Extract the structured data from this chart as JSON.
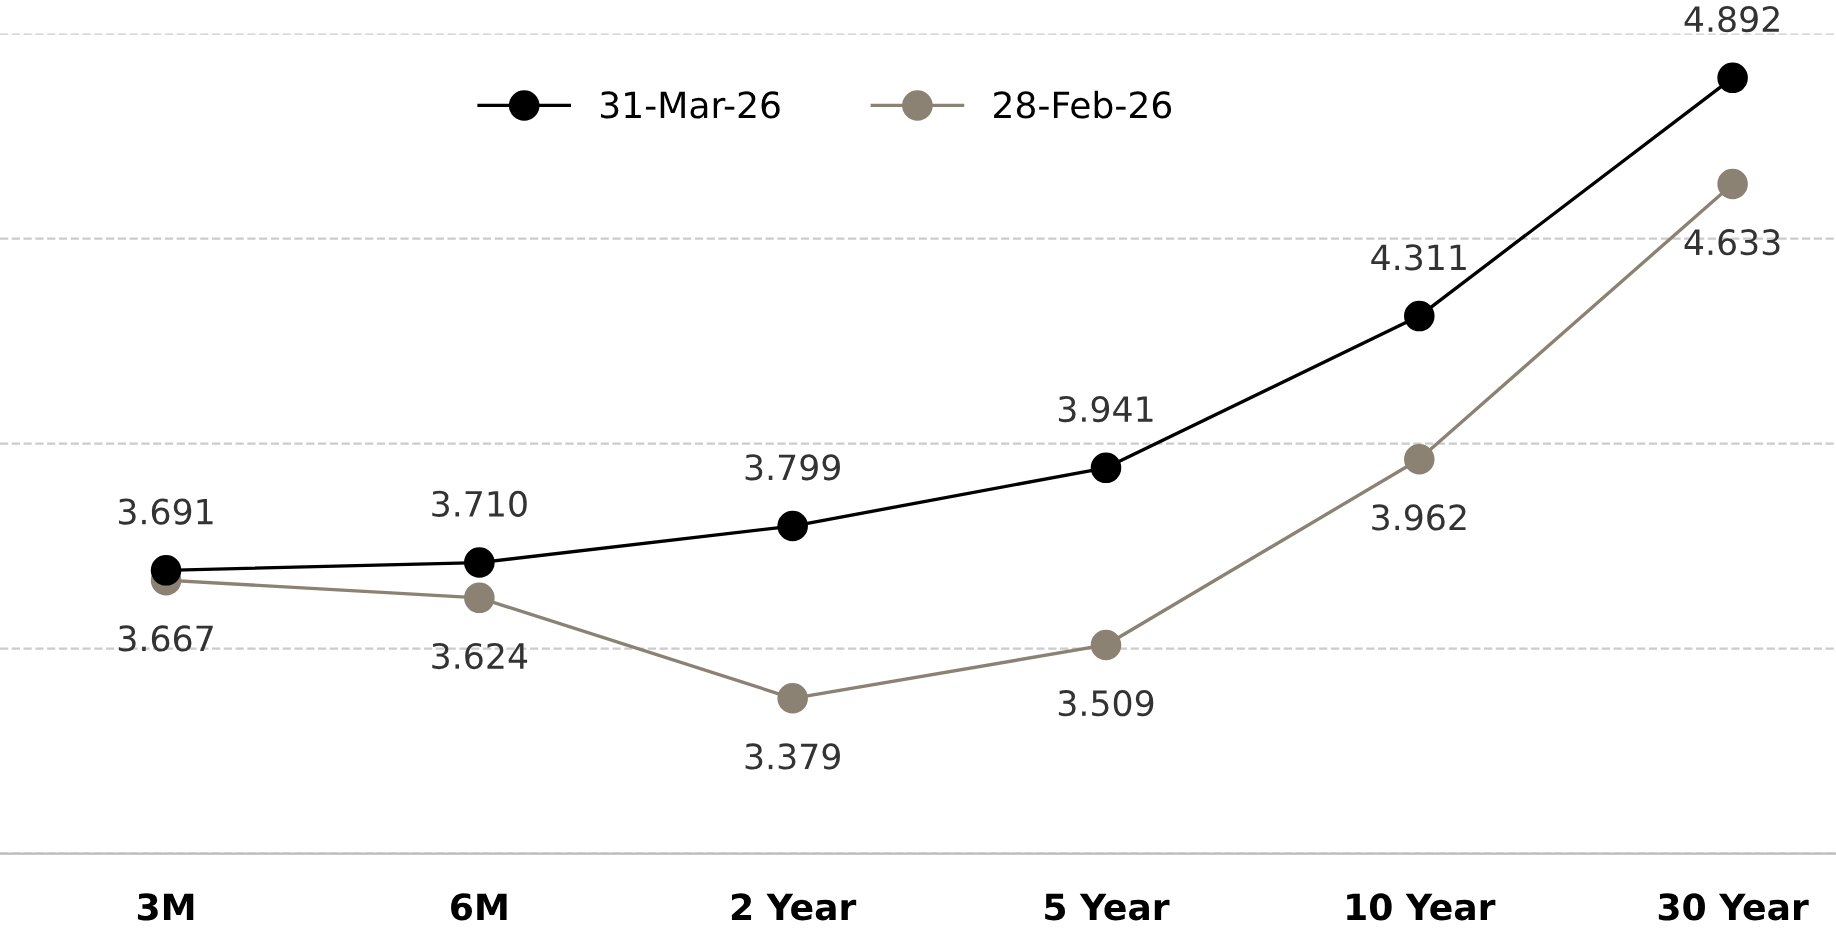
{
  "chart_data": {
    "type": "line",
    "categories": [
      "3M",
      "6M",
      "2 Year",
      "5 Year",
      "10 Year",
      "30 Year"
    ],
    "series": [
      {
        "name": "31-Mar-26",
        "color": "#000000",
        "values": [
          3.691,
          3.71,
          3.799,
          3.941,
          4.311,
          4.892
        ],
        "value_labels": [
          "3.691",
          "3.710",
          "3.799",
          "3.941",
          "4.311",
          "4.892"
        ]
      },
      {
        "name": "28-Feb-26",
        "color": "#8c8273",
        "values": [
          3.667,
          3.624,
          3.379,
          3.509,
          3.962,
          4.633
        ],
        "value_labels": [
          "3.667",
          "3.624",
          "3.379",
          "3.509",
          "3.962",
          "4.633"
        ]
      }
    ],
    "ylim": [
      3.0,
      5.0
    ],
    "yticks": [
      {
        "value": 3.0,
        "label": null
      },
      {
        "value": 3.5,
        "label": null
      },
      {
        "value": 4.0,
        "label": null
      },
      {
        "value": 4.5,
        "label": null
      },
      {
        "value": 5.0,
        "label": null
      }
    ],
    "tick_labels": "x",
    "grid": "y",
    "legend": "top",
    "marker": "circle",
    "line_style": "solid"
  }
}
